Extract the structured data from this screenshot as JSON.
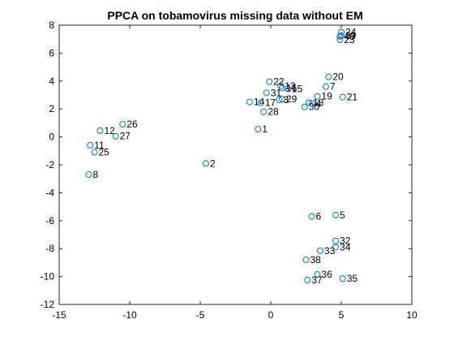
{
  "chart_data": {
    "type": "scatter",
    "title": "PPCA on tobamovirus missing data without EM",
    "xlabel": "",
    "ylabel": "",
    "xlim": [
      -15,
      10
    ],
    "ylim": [
      -12,
      8
    ],
    "xticks": [
      "-15",
      "-10",
      "-5",
      "0",
      "5",
      "10"
    ],
    "yticks": [
      "-12",
      "-10",
      "-8",
      "-6",
      "-4",
      "-2",
      "0",
      "2",
      "4",
      "6",
      "8"
    ],
    "grid": false,
    "marker": "open-circle",
    "marker_color": "#0072BD",
    "points": [
      {
        "label": "1",
        "x": -0.9,
        "y": 0.55
      },
      {
        "label": "2",
        "x": -4.6,
        "y": -1.9
      },
      {
        "label": "7",
        "x": 3.9,
        "y": 3.6
      },
      {
        "label": "8",
        "x": -12.9,
        "y": -2.7
      },
      {
        "label": "11",
        "x": -12.8,
        "y": -0.6
      },
      {
        "label": "12",
        "x": -12.1,
        "y": 0.45
      },
      {
        "label": "13",
        "x": 0.7,
        "y": 3.65
      },
      {
        "label": "14",
        "x": -1.5,
        "y": 2.5
      },
      {
        "label": "15",
        "x": 1.2,
        "y": 3.45
      },
      {
        "label": "16",
        "x": 0.8,
        "y": 3.5
      },
      {
        "label": "17",
        "x": -0.7,
        "y": 2.45
      },
      {
        "label": "18",
        "x": 2.7,
        "y": 2.45
      },
      {
        "label": "19",
        "x": 3.3,
        "y": 2.9
      },
      {
        "label": "20",
        "x": 4.1,
        "y": 4.3
      },
      {
        "label": "21",
        "x": 5.1,
        "y": 2.85
      },
      {
        "label": "22",
        "x": -0.1,
        "y": 3.95
      },
      {
        "label": "23",
        "x": 4.9,
        "y": 6.95
      },
      {
        "label": "24",
        "x": 5.0,
        "y": 7.5
      },
      {
        "label": "25",
        "x": -12.5,
        "y": -1.1
      },
      {
        "label": "26",
        "x": -10.5,
        "y": 0.9
      },
      {
        "label": "27",
        "x": -11.0,
        "y": 0.05
      },
      {
        "label": "28",
        "x": -0.5,
        "y": 1.8
      },
      {
        "label": "29",
        "x": 0.8,
        "y": 2.7
      },
      {
        "label": "30",
        "x": 2.4,
        "y": 2.15
      },
      {
        "label": "31",
        "x": -0.3,
        "y": 3.15
      },
      {
        "label": "32",
        "x": 4.6,
        "y": -7.45
      },
      {
        "label": "33",
        "x": 3.5,
        "y": -8.15
      },
      {
        "label": "34",
        "x": 4.6,
        "y": -7.9
      },
      {
        "label": "35",
        "x": 5.1,
        "y": -10.15
      },
      {
        "label": "36",
        "x": 3.3,
        "y": -9.85
      },
      {
        "label": "37",
        "x": 2.6,
        "y": -10.25
      },
      {
        "label": "38",
        "x": 2.5,
        "y": -8.8
      },
      {
        "label": "39",
        "x": 5.0,
        "y": 7.25
      },
      {
        "label": "40",
        "x": 4.9,
        "y": 7.2
      },
      {
        "label": "4",
        "x": 2.9,
        "y": 2.4
      },
      {
        "label": "3",
        "x": 0.6,
        "y": 2.65
      },
      {
        "label": "5",
        "x": 4.6,
        "y": -5.6
      },
      {
        "label": "6",
        "x": 2.9,
        "y": -5.7
      }
    ]
  }
}
